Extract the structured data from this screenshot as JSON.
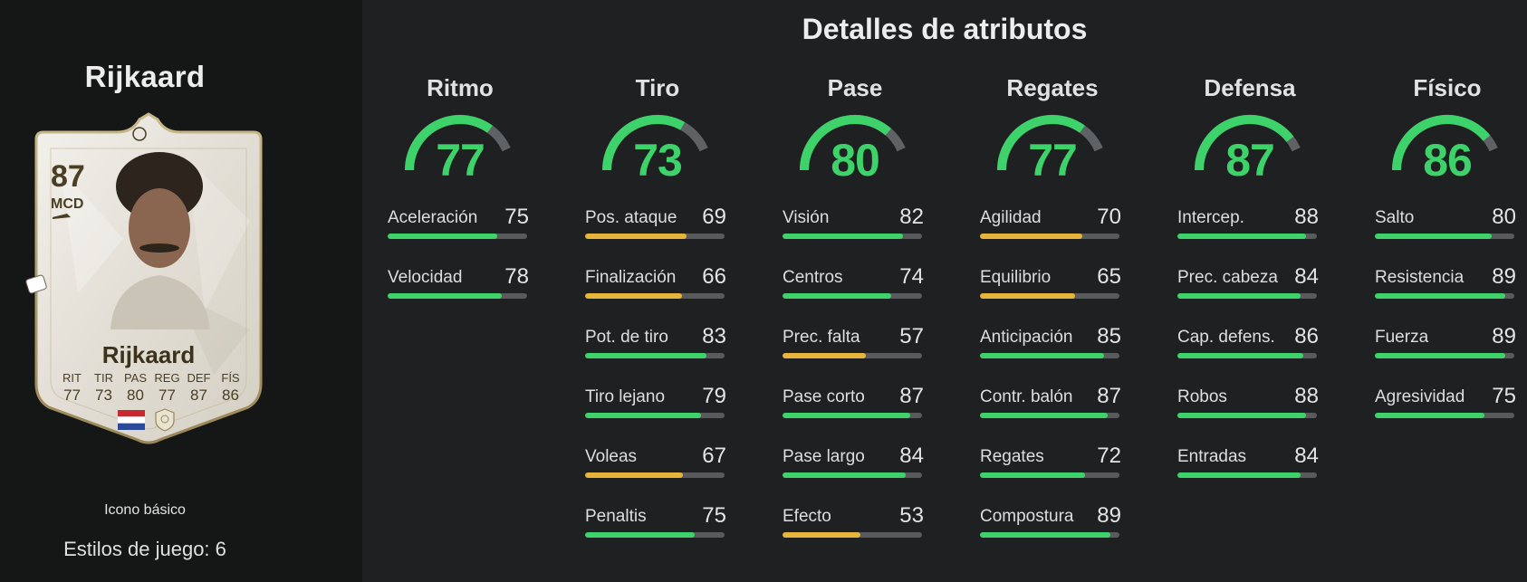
{
  "player": {
    "name": "Rijkaard",
    "card": {
      "rating": "87",
      "position": "MCD",
      "name": "Rijkaard",
      "stat_labels": [
        "RIT",
        "TIR",
        "PAS",
        "REG",
        "DEF",
        "FÍS"
      ],
      "stat_values": [
        "77",
        "73",
        "80",
        "77",
        "87",
        "86"
      ],
      "flag_icon": "netherlands-flag-icon",
      "badge_icon": "icon-club-badge-icon"
    },
    "card_title": "Icono básico",
    "playstyles_text": "Estilos de juego: 6"
  },
  "section_title": "Detalles de atributos",
  "colors": {
    "green": "#3ed36a",
    "yellow": "#e8b53c",
    "track": "#585a5b"
  },
  "categories": [
    {
      "name": "Ritmo",
      "value": "77",
      "stats": [
        {
          "label": "Aceleración",
          "value": "75",
          "color": "green"
        },
        {
          "label": "Velocidad",
          "value": "78",
          "color": "green"
        }
      ]
    },
    {
      "name": "Tiro",
      "value": "73",
      "stats": [
        {
          "label": "Pos. ataque",
          "value": "69",
          "color": "yellow"
        },
        {
          "label": "Finalización",
          "value": "66",
          "color": "yellow"
        },
        {
          "label": "Pot. de tiro",
          "value": "83",
          "color": "green"
        },
        {
          "label": "Tiro lejano",
          "value": "79",
          "color": "green"
        },
        {
          "label": "Voleas",
          "value": "67",
          "color": "yellow"
        },
        {
          "label": "Penaltis",
          "value": "75",
          "color": "green"
        }
      ]
    },
    {
      "name": "Pase",
      "value": "80",
      "stats": [
        {
          "label": "Visión",
          "value": "82",
          "color": "green"
        },
        {
          "label": "Centros",
          "value": "74",
          "color": "green"
        },
        {
          "label": "Prec. falta",
          "value": "57",
          "color": "yellow"
        },
        {
          "label": "Pase corto",
          "value": "87",
          "color": "green"
        },
        {
          "label": "Pase largo",
          "value": "84",
          "color": "green"
        },
        {
          "label": "Efecto",
          "value": "53",
          "color": "yellow"
        }
      ]
    },
    {
      "name": "Regates",
      "value": "77",
      "stats": [
        {
          "label": "Agilidad",
          "value": "70",
          "color": "yellow"
        },
        {
          "label": "Equilibrio",
          "value": "65",
          "color": "yellow"
        },
        {
          "label": "Anticipación",
          "value": "85",
          "color": "green"
        },
        {
          "label": "Contr. balón",
          "value": "87",
          "color": "green"
        },
        {
          "label": "Regates",
          "value": "72",
          "color": "green"
        },
        {
          "label": "Compostura",
          "value": "89",
          "color": "green"
        }
      ]
    },
    {
      "name": "Defensa",
      "value": "87",
      "stats": [
        {
          "label": "Intercep.",
          "value": "88",
          "color": "green"
        },
        {
          "label": "Prec. cabeza",
          "value": "84",
          "color": "green"
        },
        {
          "label": "Cap. defens.",
          "value": "86",
          "color": "green"
        },
        {
          "label": "Robos",
          "value": "88",
          "color": "green"
        },
        {
          "label": "Entradas",
          "value": "84",
          "color": "green"
        }
      ]
    },
    {
      "name": "Físico",
      "value": "86",
      "stats": [
        {
          "label": "Salto",
          "value": "80",
          "color": "green"
        },
        {
          "label": "Resistencia",
          "value": "89",
          "color": "green"
        },
        {
          "label": "Fuerza",
          "value": "89",
          "color": "green"
        },
        {
          "label": "Agresividad",
          "value": "75",
          "color": "green"
        }
      ]
    }
  ]
}
